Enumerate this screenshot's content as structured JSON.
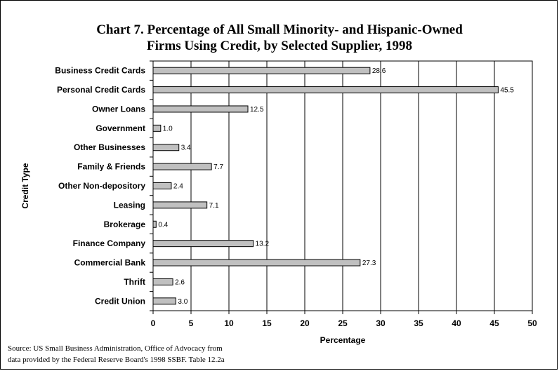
{
  "chart_data": {
    "type": "bar",
    "orientation": "horizontal",
    "title": "Chart 7. Percentage of All Small Minority- and Hispanic-Owned Firms Using Credit, by Selected Supplier, 1998",
    "title_lines": [
      "Chart 7. Percentage of All Small Minority- and Hispanic-Owned",
      "Firms Using Credit, by Selected Supplier, 1998"
    ],
    "xlabel": "Percentage",
    "ylabel": "Credit Type",
    "xlim": [
      0,
      50
    ],
    "xticks": [
      0,
      5,
      10,
      15,
      20,
      25,
      30,
      35,
      40,
      45,
      50
    ],
    "grid": true,
    "categories": [
      "Business Credit Cards",
      "Personal Credit Cards",
      "Owner Loans",
      "Government",
      "Other Businesses",
      "Family & Friends",
      "Other Non-depository",
      "Leasing",
      "Brokerage",
      "Finance Company",
      "Commercial Bank",
      "Thrift",
      "Credit Union"
    ],
    "values": [
      28.6,
      45.5,
      12.5,
      1.0,
      3.4,
      7.7,
      2.4,
      7.1,
      0.4,
      13.2,
      27.3,
      2.6,
      3.0
    ],
    "value_labels": [
      "28.6",
      "45.5",
      "12.5",
      "1.0",
      "3.4",
      "7.7",
      "2.4",
      "7.1",
      "0.4",
      "13.2",
      "27.3",
      "2.6",
      "3.0"
    ],
    "colors": {
      "bar_fill": "#c0c0c0",
      "bar_stroke": "#000000",
      "grid": "#000000"
    }
  },
  "source_lines": [
    "Source:  US Small Business Administration, Office of Advocacy from",
    "data provided by the Federal Reserve Board's 1998 SSBF.  Table 12.2a"
  ]
}
